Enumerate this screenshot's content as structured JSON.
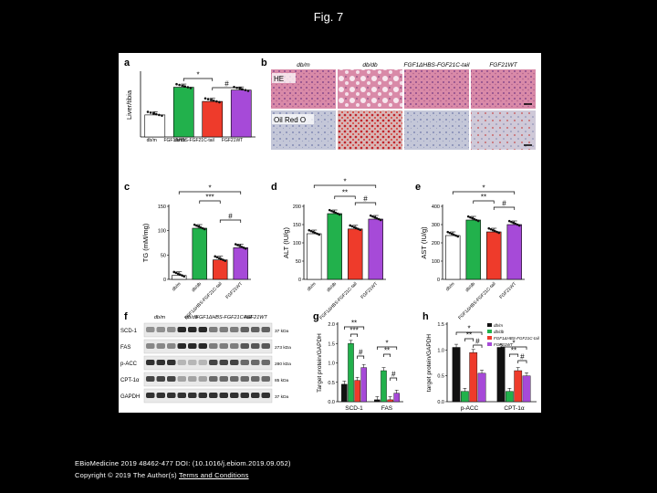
{
  "title": "Fig. 7",
  "footer": {
    "citation": "EBioMedicine 2019 48462-477 DOI: (10.1016/j.ebiom.2019.09.052)",
    "copyright": "Copyright © 2019 The Author(s)",
    "terms_link": "Terms and Conditions"
  },
  "groups": [
    "db/m",
    "db/db",
    "FGF1ΔHBS-FGF21C-tail",
    "FGF21WT"
  ],
  "colors": {
    "db_m": "#ffffff",
    "db_db": "#22b14c",
    "fusion": "#ee3b2b",
    "fgf21": "#a64ad8",
    "black": "#111111",
    "gray": "#999999"
  },
  "panels": {
    "a": {
      "letter": "a",
      "ylabel": "Liver/tibia",
      "xticks": [
        "db/m",
        "db/db",
        "FGF1ΔHBS-FGF21C-tail",
        "FGF21WT"
      ],
      "sig": [
        "*",
        "#"
      ]
    },
    "b": {
      "letter": "b",
      "cols": [
        "db/m",
        "db/db",
        "FGF1ΔHBS-FGF21C-tail",
        "FGF21WT"
      ],
      "rows": [
        "HE",
        "Oil Red O"
      ]
    },
    "c": {
      "letter": "c",
      "ylabel": "TG (mM/mg)",
      "yticks": [
        "0",
        "50",
        "100",
        "150"
      ],
      "xticks": [
        "db/m",
        "db/db",
        "FGF1ΔHBS-FGF21C-tail",
        "FGF21WT"
      ],
      "sig": [
        "*",
        "***",
        "#"
      ]
    },
    "d": {
      "letter": "d",
      "ylabel": "ALT (IU/g)",
      "yticks": [
        "0",
        "50",
        "100",
        "150",
        "200"
      ],
      "xticks": [
        "db/m",
        "db/db",
        "FGF1ΔHBS-FGF21C-tail",
        "FGF21WT"
      ],
      "sig": [
        "*",
        "**",
        "#"
      ]
    },
    "e": {
      "letter": "e",
      "ylabel": "AST (IU/g)",
      "yticks": [
        "0",
        "100",
        "200",
        "300",
        "400"
      ],
      "xticks": [
        "db/m",
        "db/db",
        "FGF1ΔHBS-FGF21C-tail",
        "FGF21WT"
      ],
      "sig": [
        "*",
        "**",
        "#"
      ]
    },
    "f": {
      "letter": "f",
      "cols": [
        "db/m",
        "db/db",
        "FGF1ΔHBS-FGF21C-tail",
        "FGF21WT"
      ],
      "rows": [
        {
          "name": "SCD-1",
          "kda": "37 kDa"
        },
        {
          "name": "FAS",
          "kda": "273 kDa"
        },
        {
          "name": "p-ACC",
          "kda": "280 kDa"
        },
        {
          "name": "CPT-1α",
          "kda": "85 kDa"
        },
        {
          "name": "GAPDH",
          "kda": "37 kDa"
        }
      ]
    },
    "g": {
      "letter": "g",
      "ylabel": "Target protein/GAPDH",
      "yticks": [
        "0.0",
        "0.5",
        "1.0",
        "1.5",
        "2.0"
      ],
      "categories": [
        "SCD-1",
        "FAS"
      ],
      "sig": [
        "**",
        "***",
        "#",
        "*",
        "**",
        "#"
      ]
    },
    "h": {
      "letter": "h",
      "ylabel": "target protein/GAPDH",
      "yticks": [
        "0.0",
        "0.5",
        "1.0",
        "1.5"
      ],
      "categories": [
        "p-ACC",
        "CPT-1α"
      ],
      "legend": [
        "db/m",
        "db/db",
        "FGF1ΔHBS-FGF21C-tail",
        "FGF21WT"
      ],
      "sig": [
        "*",
        "**",
        "#",
        "*",
        "**",
        "#"
      ]
    }
  },
  "chart_data": [
    {
      "type": "bar",
      "panel": "a",
      "ylabel": "Liver/tibia",
      "categories": [
        "db/m",
        "db/db",
        "FGF1ΔHBS-FGF21C-tail",
        "FGF21WT"
      ],
      "values": [
        0.62,
        1.4,
        1.0,
        1.32
      ],
      "ylim": [
        0,
        1.8
      ]
    },
    {
      "type": "bar",
      "panel": "c",
      "ylabel": "TG (mM/mg)",
      "categories": [
        "db/m",
        "db/db",
        "FGF1ΔHBS-FGF21C-tail",
        "FGF21WT"
      ],
      "values": [
        8,
        105,
        40,
        65
      ],
      "ylim": [
        0,
        150
      ]
    },
    {
      "type": "bar",
      "panel": "d",
      "ylabel": "ALT (IU/g)",
      "categories": [
        "db/m",
        "db/db",
        "FGF1ΔHBS-FGF21C-tail",
        "FGF21WT"
      ],
      "values": [
        125,
        180,
        138,
        165
      ],
      "ylim": [
        0,
        200
      ]
    },
    {
      "type": "bar",
      "panel": "e",
      "ylabel": "AST (IU/g)",
      "categories": [
        "db/m",
        "db/db",
        "FGF1ΔHBS-FGF21C-tail",
        "FGF21WT"
      ],
      "values": [
        240,
        325,
        260,
        300
      ],
      "ylim": [
        0,
        400
      ]
    },
    {
      "type": "bar",
      "panel": "g",
      "ylabel": "Target protein/GAPDH",
      "categories": [
        "SCD-1",
        "FAS"
      ],
      "series": [
        {
          "values": [
            0.45,
            1.5
          ]
        },
        {
          "values": [
            0.05,
            0.8
          ]
        }
      ],
      "group_values": [
        [
          0.45,
          1.5,
          0.55,
          0.88
        ],
        [
          0.05,
          0.8,
          0.05,
          0.22
        ]
      ],
      "ylim": [
        0,
        2.0
      ]
    },
    {
      "type": "bar",
      "panel": "h",
      "ylabel": "target protein/GAPDH",
      "categories": [
        "p-ACC",
        "CPT-1α"
      ],
      "group_values": [
        [
          1.05,
          0.2,
          0.95,
          0.55
        ],
        [
          1.05,
          0.2,
          0.6,
          0.5
        ]
      ],
      "ylim": [
        0,
        1.5
      ]
    }
  ]
}
